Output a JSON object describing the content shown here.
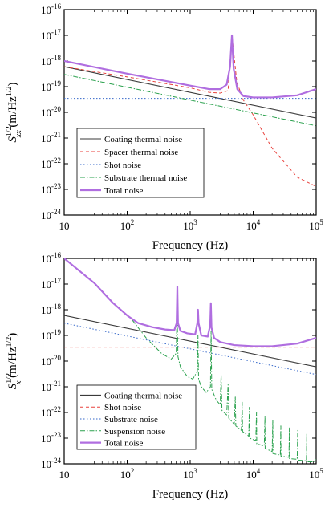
{
  "chart_data": [
    {
      "type": "line",
      "xlabel": "Frequency (Hz)",
      "ylabel": {
        "base": "S",
        "sup": "1/2",
        "sub": "xx",
        "unit": " (m/Hz",
        "unit_sup": "1/2",
        "unit_end": ")"
      },
      "xscale": "log",
      "yscale": "log",
      "xlim": [
        10,
        100000
      ],
      "ylim": [
        1e-24,
        1e-16
      ],
      "xticks": [
        "10",
        "10^2",
        "10^3",
        "10^4",
        "10^5"
      ],
      "yticks": [
        "10^-24",
        "10^-23",
        "10^-22",
        "10^-21",
        "10^-20",
        "10^-19",
        "10^-18",
        "10^-17",
        "10^-16"
      ],
      "legend_position": "lower-left",
      "series": [
        {
          "name": "Coating thermal noise",
          "color": "#3a3a3a",
          "dash": "",
          "width": 1.1,
          "x": [
            10,
            100000
          ],
          "y": [
            6e-19,
            6e-21
          ]
        },
        {
          "name": "Spacer thermal noise",
          "color": "#e8413c",
          "dash": "4,3",
          "width": 1.0,
          "x": [
            10,
            100,
            1000,
            2000,
            3000,
            4000,
            4600,
            5500,
            7000,
            10000,
            20000,
            50000,
            100000
          ],
          "y": [
            6e-19,
            2.4e-19,
            9e-20,
            6e-20,
            5.6e-20,
            7e-20,
            1e-17,
            1.5e-19,
            3e-20,
            8e-21,
            4e-22,
            3e-23,
            1.3e-23
          ]
        },
        {
          "name": "Shot noise",
          "color": "#3567c9",
          "dash": "1.5,2.5",
          "width": 1.0,
          "x": [
            10,
            1000,
            100000
          ],
          "y": [
            3.5e-20,
            3.5e-20,
            3.5e-20
          ]
        },
        {
          "name": "Substrate thermal noise",
          "color": "#2aa14d",
          "dash": "6,2,1.5,2",
          "width": 1.0,
          "x": [
            10,
            100000
          ],
          "y": [
            3e-19,
            3e-21
          ]
        },
        {
          "name": "Total noise",
          "color": "#b06ee0",
          "dash": "",
          "width": 2.2,
          "x": [
            10,
            100,
            1000,
            2000,
            3000,
            3800,
            4300,
            4600,
            4900,
            5600,
            7000,
            10000,
            20000,
            50000,
            100000
          ],
          "y": [
            1e-18,
            3.2e-19,
            1.1e-19,
            8e-20,
            8e-20,
            1.2e-19,
            6e-19,
            1e-17,
            5e-19,
            8e-20,
            4.3e-20,
            3.8e-20,
            3.8e-20,
            4.6e-20,
            8e-20
          ]
        }
      ]
    },
    {
      "type": "line",
      "xlabel": "Frequency (Hz)",
      "ylabel": {
        "base": "S",
        "sup": "1/2",
        "sub": "x",
        "unit": " (m/Hz",
        "unit_sup": "1/2",
        "unit_end": ")"
      },
      "xscale": "log",
      "yscale": "log",
      "xlim": [
        10,
        100000
      ],
      "ylim": [
        1e-24,
        1e-16
      ],
      "xticks": [
        "10",
        "10^2",
        "10^3",
        "10^4",
        "10^5"
      ],
      "yticks": [
        "10^-24",
        "10^-23",
        "10^-22",
        "10^-21",
        "10^-20",
        "10^-19",
        "10^-18",
        "10^-17",
        "10^-16"
      ],
      "legend_position": "lower-left",
      "series": [
        {
          "name": "Coating thermal noise",
          "color": "#3a3a3a",
          "dash": "",
          "width": 1.1,
          "x": [
            10,
            100000
          ],
          "y": [
            6e-19,
            6e-21
          ]
        },
        {
          "name": "Shot noise",
          "color": "#e8413c",
          "dash": "4,3",
          "width": 1.0,
          "x": [
            10,
            1000,
            100000
          ],
          "y": [
            3.5e-20,
            3.5e-20,
            3.5e-20
          ]
        },
        {
          "name": "Substrate noise",
          "color": "#3567c9",
          "dash": "1.5,2.5",
          "width": 1.0,
          "x": [
            10,
            100000
          ],
          "y": [
            3e-19,
            3e-21
          ]
        },
        {
          "name": "Suspension noise",
          "color": "#2aa14d",
          "dash": "6,2,1.5,2",
          "width": 1.0,
          "x": [
            120,
            200,
            350,
            500,
            600,
            620,
            640,
            700,
            900,
            1100,
            1300,
            1330,
            1360,
            1500,
            1800,
            2100,
            2150,
            2200,
            2600,
            3000,
            3100,
            3200,
            3800,
            4000,
            4100,
            5000,
            5200,
            5300,
            6500,
            6700,
            6800,
            8500,
            8700,
            8800,
            11000,
            11300,
            11400,
            15000,
            15400,
            15500,
            20000,
            20500,
            20600,
            27000,
            27500,
            27600,
            37000,
            37600,
            37700,
            50000,
            51000,
            51100,
            70000,
            71000,
            71100,
            95000,
            100000
          ],
          "y": [
            4e-19,
            8e-20,
            2e-20,
            1.2e-20,
            2e-20,
            8e-19,
            1.5e-20,
            6e-21,
            2.5e-21,
            2e-21,
            4e-21,
            1e-19,
            2e-21,
            1e-21,
            6e-22,
            1e-21,
            1.5e-19,
            8e-22,
            3e-22,
            2e-22,
            3e-21,
            1.2e-22,
            8e-23,
            1.2e-21,
            6e-23,
            3.5e-23,
            4e-22,
            3e-23,
            2e-23,
            2.5e-22,
            1.8e-23,
            1.2e-23,
            1.6e-22,
            1e-23,
            8e-24,
            1e-22,
            6e-24,
            5e-24,
            7e-23,
            4e-24,
            3e-24,
            5e-23,
            2.5e-24,
            2.2e-24,
            3e-23,
            2e-24,
            1.8e-24,
            2.5e-23,
            1.6e-24,
            1.5e-24,
            2e-23,
            1.4e-24,
            1.3e-24,
            1.5e-23,
            1.2e-24,
            1.2e-24,
            1.5e-24
          ]
        },
        {
          "name": "Total noise",
          "color": "#b06ee0",
          "dash": "",
          "width": 2.2,
          "x": [
            10,
            30,
            60,
            100,
            150,
            250,
            400,
            560,
            610,
            625,
            640,
            700,
            900,
            1200,
            1300,
            1330,
            1360,
            1500,
            1900,
            2080,
            2130,
            2180,
            2400,
            3000,
            5000,
            10000,
            20000,
            50000,
            100000
          ],
          "y": [
            1e-16,
            1.1e-17,
            1.8e-18,
            6e-19,
            3e-19,
            2.1e-19,
            1.7e-19,
            1.6e-19,
            3e-19,
            8e-18,
            3e-19,
            1.5e-19,
            1.2e-19,
            1.1e-19,
            3e-19,
            1e-18,
            3e-19,
            1e-19,
            9e-20,
            2.5e-19,
            1.8e-18,
            2e-19,
            8e-20,
            5.5e-20,
            4.2e-20,
            3.8e-20,
            3.8e-20,
            4.8e-20,
            8e-20
          ]
        }
      ]
    }
  ]
}
